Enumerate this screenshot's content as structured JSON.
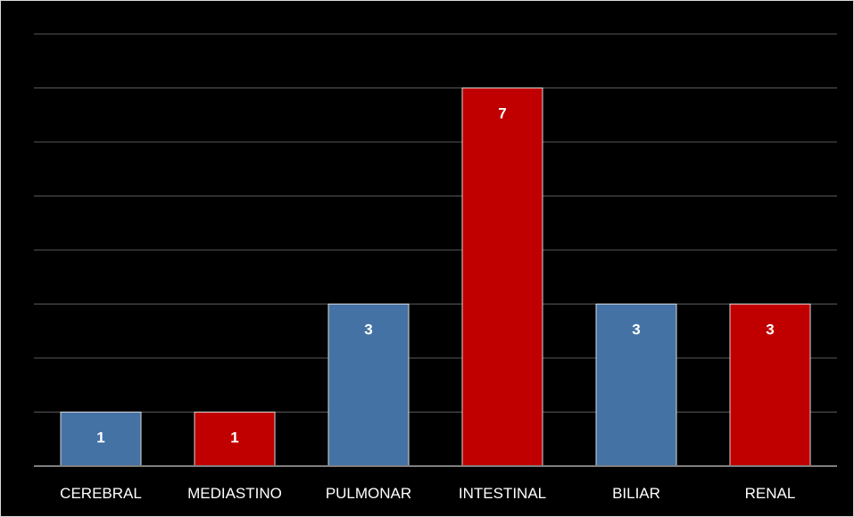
{
  "chart_data": {
    "type": "bar",
    "categories": [
      "CEREBRAL",
      "MEDIASTINO",
      "PULMONAR",
      "INTESTINAL",
      "BILIAR",
      "RENAL"
    ],
    "values": [
      1,
      1,
      3,
      7,
      3,
      3
    ],
    "title": "",
    "xlabel": "",
    "ylabel": "",
    "ylim": [
      0,
      8
    ],
    "grid": true,
    "legend": "none",
    "colors": {
      "background": "#000000",
      "border": "#d9d9d9",
      "gridline": "#595959",
      "axis": "#7f7f7f",
      "bar_blue": "#4472a4",
      "bar_red": "#c00000",
      "bar_outline": "#d9d9d9",
      "text": "#ffffff"
    },
    "bar_colors": [
      "#4472a4",
      "#c00000",
      "#4472a4",
      "#c00000",
      "#4472a4",
      "#c00000"
    ]
  }
}
